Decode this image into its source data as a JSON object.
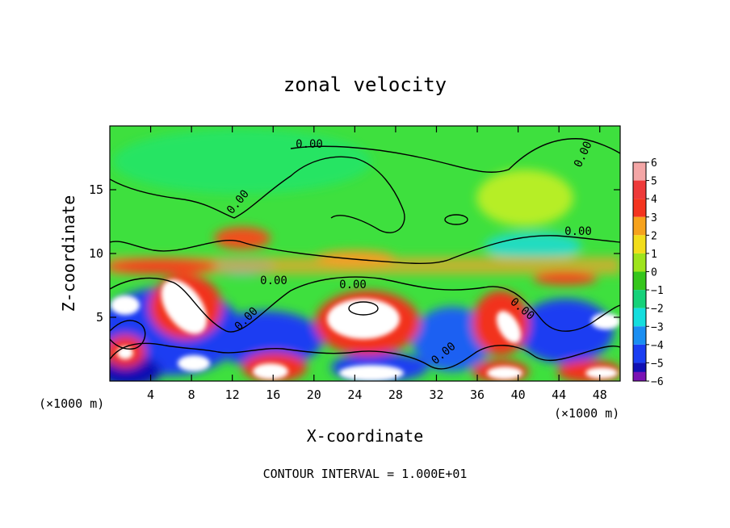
{
  "chart_data": {
    "type": "heatmap",
    "title": "zonal velocity",
    "xlabel": "X-coordinate",
    "ylabel": "Z-coordinate",
    "x_unit_left": "(×1000 m)",
    "x_unit_right": "(×1000 m)",
    "xlim": [
      0,
      50
    ],
    "ylim": [
      0,
      20
    ],
    "x_ticks": [
      4,
      8,
      12,
      16,
      20,
      24,
      28,
      32,
      36,
      40,
      44,
      48
    ],
    "y_ticks": [
      5,
      10,
      15
    ],
    "colorbar": {
      "levels": [
        6,
        5,
        4,
        3,
        2,
        1,
        0,
        -1,
        -2,
        -3,
        -4,
        -5,
        -6
      ],
      "colors": [
        "#f4a6a6",
        "#ee3a3a",
        "#f4341f",
        "#f6a21c",
        "#f2dd1a",
        "#9ee41c",
        "#35c61c",
        "#16d27a",
        "#14dede",
        "#1a8ef2",
        "#1a3ef2",
        "#1010b4",
        "#7a12b4"
      ]
    },
    "contour_label": "0.00",
    "contour_labels_count": 9,
    "footer": "CONTOUR INTERVAL = 1.000E+01",
    "grid": false
  },
  "colors": {
    "background_field": "#3ee03e",
    "upper_field": "#2fe84f"
  }
}
